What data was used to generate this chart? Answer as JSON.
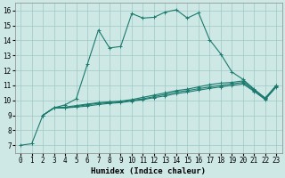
{
  "xlabel": "Humidex (Indice chaleur)",
  "xlim": [
    -0.5,
    23.5
  ],
  "ylim": [
    6.5,
    16.5
  ],
  "xticks": [
    0,
    1,
    2,
    3,
    4,
    5,
    6,
    7,
    8,
    9,
    10,
    11,
    12,
    13,
    14,
    15,
    16,
    17,
    18,
    19,
    20,
    21,
    22,
    23
  ],
  "yticks": [
    7,
    8,
    9,
    10,
    11,
    12,
    13,
    14,
    15,
    16
  ],
  "background_color": "#cde8e5",
  "grid_color": "#a0c8c4",
  "line_color": "#1a7a6e",
  "line1_x": [
    0,
    1,
    2,
    3,
    4,
    5,
    6,
    7,
    8,
    9,
    10,
    11,
    12,
    13,
    14,
    15,
    16,
    17,
    18,
    19,
    20,
    21,
    22,
    23
  ],
  "line1_y": [
    7.0,
    7.1,
    9.0,
    9.5,
    9.7,
    10.1,
    12.4,
    14.7,
    13.5,
    13.6,
    15.8,
    15.5,
    15.55,
    15.9,
    16.05,
    15.5,
    15.85,
    14.05,
    13.1,
    11.9,
    11.4,
    10.75,
    10.15,
    11.0
  ],
  "line2_x": [
    2,
    3,
    4,
    5,
    6,
    7,
    8,
    9,
    10,
    11,
    12,
    13,
    14,
    15,
    16,
    17,
    18,
    19,
    20,
    21,
    22,
    23
  ],
  "line2_y": [
    9.0,
    9.5,
    9.55,
    9.65,
    9.75,
    9.85,
    9.9,
    9.95,
    10.05,
    10.2,
    10.35,
    10.5,
    10.65,
    10.75,
    10.9,
    11.05,
    11.15,
    11.2,
    11.3,
    10.72,
    10.15,
    11.0
  ],
  "line3_x": [
    2,
    3,
    4,
    5,
    6,
    7,
    8,
    9,
    10,
    11,
    12,
    13,
    14,
    15,
    16,
    17,
    18,
    19,
    20,
    21,
    22,
    23
  ],
  "line3_y": [
    9.0,
    9.5,
    9.5,
    9.6,
    9.7,
    9.8,
    9.85,
    9.9,
    10.0,
    10.1,
    10.25,
    10.4,
    10.55,
    10.65,
    10.78,
    10.9,
    11.0,
    11.1,
    11.2,
    10.65,
    10.1,
    10.95
  ],
  "line4_x": [
    2,
    3,
    4,
    5,
    6,
    7,
    8,
    9,
    10,
    11,
    12,
    13,
    14,
    15,
    16,
    17,
    18,
    19,
    20,
    21,
    22,
    23
  ],
  "line4_y": [
    9.0,
    9.48,
    9.5,
    9.55,
    9.62,
    9.72,
    9.8,
    9.85,
    9.95,
    10.05,
    10.18,
    10.3,
    10.45,
    10.55,
    10.68,
    10.8,
    10.9,
    11.0,
    11.1,
    10.6,
    10.05,
    10.9
  ]
}
